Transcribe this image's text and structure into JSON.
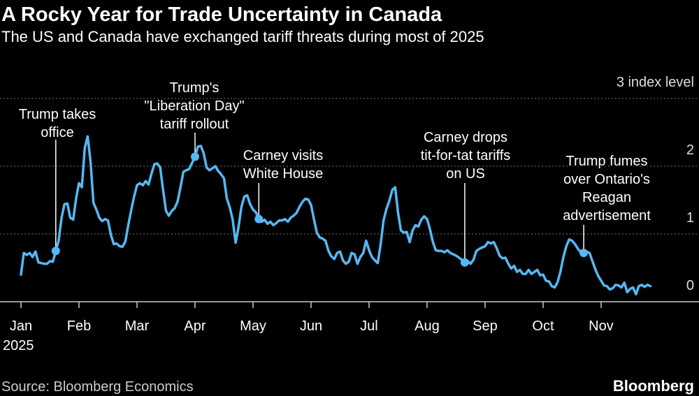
{
  "chart_data": {
    "type": "line",
    "title": "A Rocky Year for Trade Uncertainty in Canada",
    "subtitle": "The US and Canada have exchanged tariff threats during most of 2025",
    "source": "Source: Bloomberg Economics",
    "brand": "Bloomberg",
    "color": "#55b8f4",
    "grid": true,
    "xlim": [
      0,
      10.85
    ],
    "ylim": [
      0,
      3
    ],
    "yticks": [
      0,
      1,
      2,
      {
        "value": 3,
        "label": "3 index level"
      }
    ],
    "xticks": [
      {
        "value": 0,
        "label": "Jan"
      },
      {
        "value": 1,
        "label": "Feb"
      },
      {
        "value": 2,
        "label": "Mar"
      },
      {
        "value": 3,
        "label": "Apr"
      },
      {
        "value": 4,
        "label": "May"
      },
      {
        "value": 5,
        "label": "Jun"
      },
      {
        "value": 6,
        "label": "Jul"
      },
      {
        "value": 7,
        "label": "Aug"
      },
      {
        "value": 8,
        "label": "Sep"
      },
      {
        "value": 9,
        "label": "Oct"
      },
      {
        "value": 10,
        "label": "Nov"
      }
    ],
    "x_year_label": "2025",
    "x": [
      0,
      0.05,
      0.1,
      0.15,
      0.2,
      0.25,
      0.3,
      0.35,
      0.4,
      0.45,
      0.5,
      0.55,
      0.6,
      0.65,
      0.7,
      0.75,
      0.8,
      0.85,
      0.9,
      0.95,
      1,
      1.05,
      1.1,
      1.15,
      1.2,
      1.25,
      1.3,
      1.35,
      1.4,
      1.45,
      1.5,
      1.55,
      1.6,
      1.65,
      1.7,
      1.75,
      1.8,
      1.85,
      1.9,
      1.95,
      2,
      2.05,
      2.1,
      2.15,
      2.2,
      2.25,
      2.3,
      2.35,
      2.4,
      2.45,
      2.5,
      2.55,
      2.6,
      2.65,
      2.7,
      2.75,
      2.8,
      2.85,
      2.9,
      2.95,
      3,
      3.05,
      3.1,
      3.15,
      3.2,
      3.25,
      3.3,
      3.35,
      3.4,
      3.45,
      3.5,
      3.55,
      3.6,
      3.65,
      3.7,
      3.75,
      3.8,
      3.85,
      3.9,
      3.95,
      4,
      4.05,
      4.1,
      4.15,
      4.2,
      4.25,
      4.3,
      4.35,
      4.4,
      4.45,
      4.5,
      4.55,
      4.6,
      4.65,
      4.7,
      4.75,
      4.8,
      4.85,
      4.9,
      4.95,
      5,
      5.05,
      5.1,
      5.15,
      5.2,
      5.25,
      5.3,
      5.35,
      5.4,
      5.45,
      5.5,
      5.55,
      5.6,
      5.65,
      5.7,
      5.75,
      5.8,
      5.85,
      5.9,
      5.95,
      6,
      6.05,
      6.1,
      6.15,
      6.2,
      6.25,
      6.3,
      6.35,
      6.4,
      6.45,
      6.5,
      6.55,
      6.6,
      6.65,
      6.7,
      6.75,
      6.8,
      6.85,
      6.9,
      6.95,
      7,
      7.05,
      7.1,
      7.15,
      7.2,
      7.25,
      7.3,
      7.35,
      7.4,
      7.45,
      7.5,
      7.55,
      7.6,
      7.65,
      7.7,
      7.75,
      7.8,
      7.85,
      7.9,
      7.95,
      8,
      8.05,
      8.1,
      8.15,
      8.2,
      8.25,
      8.3,
      8.35,
      8.4,
      8.45,
      8.5,
      8.55,
      8.6,
      8.65,
      8.7,
      8.75,
      8.8,
      8.85,
      8.9,
      8.95,
      9,
      9.05,
      9.1,
      9.15,
      9.2,
      9.25,
      9.3,
      9.35,
      9.4,
      9.45,
      9.5,
      9.55,
      9.6,
      9.65,
      9.7,
      9.75,
      9.8,
      9.85,
      9.9,
      9.95,
      10,
      10.05,
      10.1,
      10.15,
      10.2,
      10.25,
      10.3,
      10.35,
      10.4,
      10.45,
      10.5,
      10.55,
      10.6,
      10.65,
      10.7,
      10.75,
      10.8,
      10.85
    ],
    "values": [
      0.4,
      0.72,
      0.69,
      0.72,
      0.66,
      0.74,
      0.58,
      0.57,
      0.56,
      0.56,
      0.6,
      0.59,
      0.75,
      0.9,
      1.24,
      1.44,
      1.45,
      1.24,
      1.21,
      1.52,
      1.75,
      1.69,
      2.27,
      2.44,
      2.06,
      1.46,
      1.36,
      1.24,
      1.19,
      1.22,
      1.2,
      0.99,
      0.85,
      0.86,
      0.82,
      0.81,
      0.89,
      1.13,
      1.35,
      1.55,
      1.72,
      1.75,
      1.72,
      1.78,
      1.73,
      1.89,
      2.03,
      2.04,
      1.98,
      1.65,
      1.34,
      1.27,
      1.34,
      1.38,
      1.48,
      1.69,
      1.92,
      1.94,
      1.96,
      2.05,
      2.14,
      2.29,
      2.3,
      2.19,
      1.98,
      1.94,
      1.97,
      2.0,
      1.93,
      1.88,
      1.82,
      1.52,
      1.39,
      1.21,
      0.87,
      1.1,
      1.4,
      1.55,
      1.57,
      1.44,
      1.36,
      1.32,
      1.22,
      1.18,
      1.21,
      1.15,
      1.18,
      1.13,
      1.16,
      1.2,
      1.2,
      1.22,
      1.18,
      1.24,
      1.27,
      1.31,
      1.4,
      1.47,
      1.52,
      1.51,
      1.43,
      1.22,
      1.02,
      0.95,
      0.93,
      0.9,
      0.75,
      0.67,
      0.63,
      0.72,
      0.74,
      0.61,
      0.56,
      0.59,
      0.72,
      0.7,
      0.56,
      0.66,
      0.72,
      0.9,
      0.76,
      0.66,
      0.61,
      0.57,
      0.85,
      1.2,
      1.37,
      1.49,
      1.65,
      1.69,
      1.31,
      1.05,
      1.02,
      1.03,
      0.88,
      1.05,
      1.13,
      1.11,
      1.21,
      1.26,
      1.22,
      1.07,
      0.88,
      0.76,
      0.75,
      0.75,
      0.73,
      0.76,
      0.72,
      0.7,
      0.68,
      0.65,
      0.62,
      0.58,
      0.6,
      0.56,
      0.62,
      0.75,
      0.78,
      0.8,
      0.82,
      0.88,
      0.86,
      0.88,
      0.79,
      0.68,
      0.64,
      0.65,
      0.56,
      0.49,
      0.53,
      0.44,
      0.47,
      0.41,
      0.41,
      0.47,
      0.41,
      0.44,
      0.47,
      0.39,
      0.4,
      0.31,
      0.3,
      0.23,
      0.21,
      0.29,
      0.45,
      0.66,
      0.82,
      0.92,
      0.9,
      0.85,
      0.78,
      0.73,
      0.72,
      0.74,
      0.72,
      0.6,
      0.48,
      0.38,
      0.31,
      0.24,
      0.23,
      0.18,
      0.2,
      0.25,
      0.24,
      0.21,
      0.28,
      0.14,
      0.19,
      0.21,
      0.11,
      0.23,
      0.25,
      0.22,
      0.25,
      0.23
    ],
    "annotations": [
      {
        "text": [
          "Trump takes",
          "office"
        ],
        "x": 0.6,
        "y": 0.75
      },
      {
        "text": [
          "Trump's",
          "\"Liberation Day\"",
          "tariff rollout"
        ],
        "x": 3,
        "y": 2.14
      },
      {
        "text": [
          "Carney visits",
          "White House"
        ],
        "x": 4.1,
        "y": 1.22
      },
      {
        "text": [
          "Carney drops",
          "tit-for-tat tariffs",
          "on US"
        ],
        "x": 7.65,
        "y": 0.58
      },
      {
        "text": [
          "Trump fumes",
          "over Ontario's",
          "Reagan",
          "advertisement"
        ],
        "x": 9.7,
        "y": 0.72
      }
    ]
  }
}
